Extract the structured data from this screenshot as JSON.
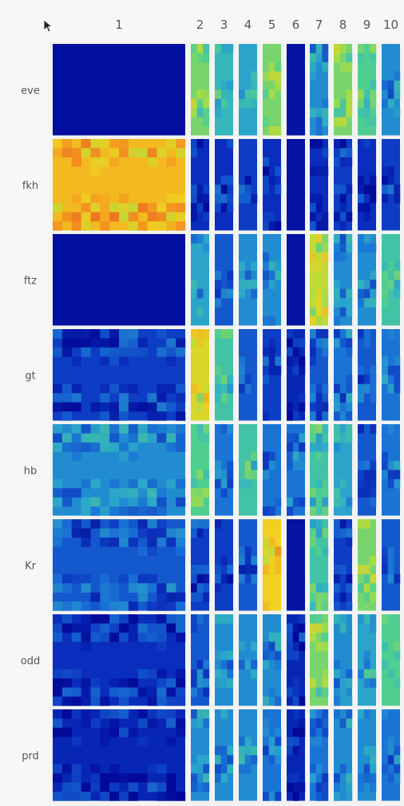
{
  "chart_data": {
    "type": "heatmap",
    "title": "",
    "xlabel": "",
    "ylabel": "",
    "column_labels": [
      "1",
      "2",
      "3",
      "4",
      "5",
      "6",
      "7",
      "8",
      "9",
      "10"
    ],
    "row_labels": [
      "eve",
      "fkh",
      "ftz",
      "gt",
      "hb",
      "Kr",
      "odd",
      "prd"
    ],
    "colormap": [
      "#00008f",
      "#0a2fbf",
      "#1a74d6",
      "#2fb0c8",
      "#4fcf8f",
      "#b5de3a",
      "#f0d020",
      "#f59a20",
      "#e8431c"
    ],
    "value_range": [
      0,
      1
    ],
    "cells": [
      [
        0.04,
        0.55,
        0.4,
        0.35,
        0.55,
        0.05,
        0.3,
        0.55,
        0.5,
        0.3
      ],
      [
        0.8,
        0.12,
        0.12,
        0.15,
        0.12,
        0.05,
        0.12,
        0.15,
        0.12,
        0.15
      ],
      [
        0.04,
        0.35,
        0.2,
        0.3,
        0.3,
        0.05,
        0.65,
        0.3,
        0.3,
        0.45
      ],
      [
        0.15,
        0.7,
        0.45,
        0.2,
        0.15,
        0.1,
        0.2,
        0.25,
        0.2,
        0.25
      ],
      [
        0.3,
        0.5,
        0.25,
        0.45,
        0.25,
        0.25,
        0.45,
        0.35,
        0.2,
        0.25
      ],
      [
        0.2,
        0.15,
        0.15,
        0.2,
        0.75,
        0.05,
        0.45,
        0.15,
        0.55,
        0.2
      ],
      [
        0.12,
        0.2,
        0.3,
        0.3,
        0.3,
        0.1,
        0.55,
        0.3,
        0.35,
        0.5
      ],
      [
        0.1,
        0.3,
        0.3,
        0.3,
        0.25,
        0.1,
        0.25,
        0.3,
        0.3,
        0.25
      ]
    ]
  }
}
